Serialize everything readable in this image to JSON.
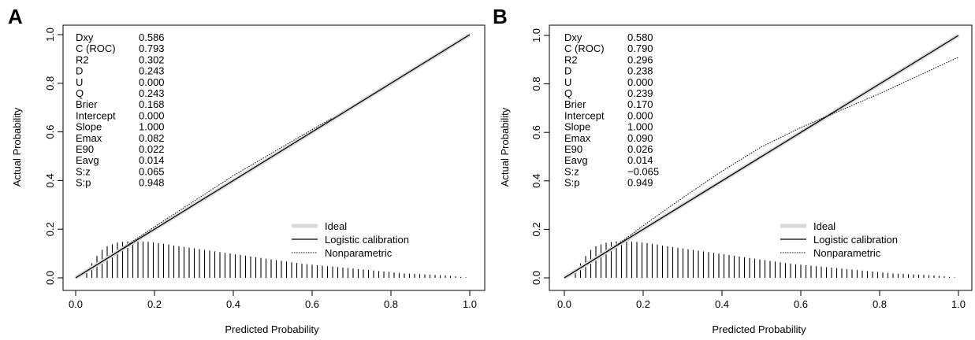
{
  "chart_data": [
    {
      "type": "line",
      "panel_label": "A",
      "xlabel": "Predicted Probability",
      "ylabel": "Actual Probability",
      "xlim": [
        0,
        1
      ],
      "ylim": [
        0,
        1
      ],
      "xticks": [
        "0.0",
        "0.2",
        "0.4",
        "0.6",
        "0.8",
        "1.0"
      ],
      "yticks": [
        "0.0",
        "0.2",
        "0.4",
        "0.6",
        "0.8",
        "1.0"
      ],
      "grid": false,
      "legend_position": "bottom-right",
      "stats": [
        {
          "name": "Dxy",
          "value": "0.586"
        },
        {
          "name": "C (ROC)",
          "value": "0.793"
        },
        {
          "name": "R2",
          "value": "0.302"
        },
        {
          "name": "D",
          "value": "0.243"
        },
        {
          "name": "U",
          "value": "0.000"
        },
        {
          "name": "Q",
          "value": "0.243"
        },
        {
          "name": "Brier",
          "value": "0.168"
        },
        {
          "name": "Intercept",
          "value": "0.000"
        },
        {
          "name": "Slope",
          "value": "1.000"
        },
        {
          "name": "Emax",
          "value": "0.082"
        },
        {
          "name": "E90",
          "value": "0.022"
        },
        {
          "name": "Eavg",
          "value": "0.014"
        },
        {
          "name": "S:z",
          "value": "0.065"
        },
        {
          "name": "S:p",
          "value": "0.948"
        }
      ],
      "series": [
        {
          "name": "Ideal",
          "color": "#d9d9d9",
          "style": "thick",
          "x": [
            0,
            1
          ],
          "y": [
            0,
            1
          ]
        },
        {
          "name": "Logistic calibration",
          "color": "#000000",
          "style": "solid",
          "x": [
            0,
            1
          ],
          "y": [
            0,
            1
          ]
        },
        {
          "name": "Nonparametric",
          "color": "#000000",
          "style": "dotted",
          "x": [
            0.0,
            0.05,
            0.1,
            0.15,
            0.2,
            0.3,
            0.4,
            0.5,
            0.6,
            0.65
          ],
          "y": [
            0.0,
            0.05,
            0.1,
            0.155,
            0.21,
            0.315,
            0.42,
            0.515,
            0.61,
            0.655
          ]
        }
      ],
      "histogram": {
        "x_start": 0.015,
        "x_end": 0.99,
        "count": 76,
        "heights": [
          0.0,
          0.025,
          0.06,
          0.09,
          0.115,
          0.13,
          0.138,
          0.145,
          0.148,
          0.15,
          0.15,
          0.15,
          0.149,
          0.148,
          0.146,
          0.143,
          0.14,
          0.137,
          0.133,
          0.13,
          0.127,
          0.124,
          0.121,
          0.118,
          0.115,
          0.112,
          0.109,
          0.106,
          0.103,
          0.1,
          0.097,
          0.094,
          0.091,
          0.088,
          0.085,
          0.082,
          0.079,
          0.076,
          0.073,
          0.07,
          0.067,
          0.064,
          0.061,
          0.058,
          0.056,
          0.054,
          0.052,
          0.05,
          0.048,
          0.046,
          0.044,
          0.042,
          0.04,
          0.038,
          0.036,
          0.034,
          0.032,
          0.03,
          0.028,
          0.026,
          0.024,
          0.022,
          0.02,
          0.018,
          0.017,
          0.016,
          0.015,
          0.014,
          0.013,
          0.012,
          0.011,
          0.01,
          0.008,
          0.006,
          0.004,
          0.002
        ]
      }
    },
    {
      "type": "line",
      "panel_label": "B",
      "xlabel": "Predicted Probability",
      "ylabel": "Actual Probability",
      "xlim": [
        0,
        1
      ],
      "ylim": [
        0,
        1
      ],
      "xticks": [
        "0.0",
        "0.2",
        "0.4",
        "0.6",
        "0.8",
        "1.0"
      ],
      "yticks": [
        "0.0",
        "0.2",
        "0.4",
        "0.6",
        "0.8",
        "1.0"
      ],
      "grid": false,
      "legend_position": "bottom-right",
      "stats": [
        {
          "name": "Dxy",
          "value": "0.580"
        },
        {
          "name": "C (ROC)",
          "value": "0.790"
        },
        {
          "name": "R2",
          "value": "0.296"
        },
        {
          "name": "D",
          "value": "0.238"
        },
        {
          "name": "U",
          "value": "0.000"
        },
        {
          "name": "Q",
          "value": "0.239"
        },
        {
          "name": "Brier",
          "value": "0.170"
        },
        {
          "name": "Intercept",
          "value": "0.000"
        },
        {
          "name": "Slope",
          "value": "1.000"
        },
        {
          "name": "Emax",
          "value": "0.090"
        },
        {
          "name": "E90",
          "value": "0.026"
        },
        {
          "name": "Eavg",
          "value": "0.014"
        },
        {
          "name": "S:z",
          "value": "−0.065"
        },
        {
          "name": "S:p",
          "value": "0.949"
        }
      ],
      "series": [
        {
          "name": "Ideal",
          "color": "#d9d9d9",
          "style": "thick",
          "x": [
            0,
            1
          ],
          "y": [
            0,
            1
          ]
        },
        {
          "name": "Logistic calibration",
          "color": "#000000",
          "style": "solid",
          "x": [
            0,
            1
          ],
          "y": [
            0,
            1
          ]
        },
        {
          "name": "Nonparametric",
          "color": "#000000",
          "style": "dotted",
          "x": [
            0.0,
            0.05,
            0.1,
            0.15,
            0.2,
            0.3,
            0.4,
            0.5,
            0.6,
            0.65,
            0.7,
            0.8,
            0.9,
            1.0
          ],
          "y": [
            0.0,
            0.05,
            0.1,
            0.155,
            0.215,
            0.33,
            0.44,
            0.54,
            0.62,
            0.655,
            0.69,
            0.76,
            0.835,
            0.91
          ]
        }
      ],
      "histogram": {
        "x_start": 0.015,
        "x_end": 0.99,
        "count": 76,
        "heights": [
          0.0,
          0.025,
          0.06,
          0.09,
          0.115,
          0.13,
          0.138,
          0.145,
          0.148,
          0.15,
          0.15,
          0.15,
          0.149,
          0.148,
          0.146,
          0.143,
          0.14,
          0.137,
          0.133,
          0.13,
          0.127,
          0.124,
          0.121,
          0.118,
          0.115,
          0.112,
          0.109,
          0.106,
          0.103,
          0.1,
          0.097,
          0.094,
          0.091,
          0.088,
          0.085,
          0.082,
          0.079,
          0.076,
          0.073,
          0.07,
          0.067,
          0.064,
          0.061,
          0.058,
          0.056,
          0.054,
          0.052,
          0.05,
          0.048,
          0.046,
          0.044,
          0.042,
          0.04,
          0.038,
          0.036,
          0.034,
          0.032,
          0.03,
          0.028,
          0.026,
          0.024,
          0.022,
          0.02,
          0.018,
          0.017,
          0.016,
          0.015,
          0.014,
          0.013,
          0.012,
          0.011,
          0.01,
          0.008,
          0.006,
          0.004,
          0.002
        ]
      }
    }
  ]
}
